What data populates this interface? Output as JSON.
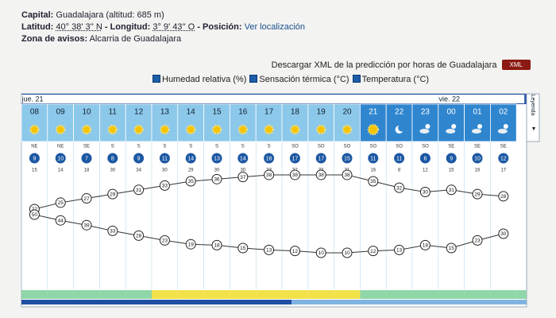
{
  "location": {
    "capital_label": "Capital:",
    "capital": "Guadalajara (altitud: 685 m)",
    "latitude_label": "Latitud:",
    "latitude": "40° 38' 3'' N",
    "longitude_label": "- Longitud:",
    "longitude": "3° 9' 43'' O",
    "position_label": "- Posición:",
    "position_link": "Ver localización",
    "zone_label": "Zona de avisos:",
    "zone": "Alcarria de Guadalajara"
  },
  "download": {
    "text": "Descargar XML de la predicción por horas de Guadalajara",
    "button": "XML"
  },
  "toggles": [
    "Humedad relativa (%)",
    "Sensación térmica (°C)",
    "Temperatura (°C)"
  ],
  "forecast": {
    "days": [
      "jue. 21",
      "vie. 22"
    ],
    "legend": "Leyenda",
    "hours": [
      "08",
      "09",
      "10",
      "11",
      "12",
      "13",
      "14",
      "15",
      "16",
      "17",
      "18",
      "19",
      "20",
      "21",
      "22",
      "23",
      "00",
      "01",
      "02"
    ],
    "wind_direction": [
      "NE",
      "NE",
      "SE",
      "S",
      "S",
      "S",
      "S",
      "S",
      "S",
      "S",
      "SO",
      "SO",
      "SO",
      "SO",
      "SO",
      "SO",
      "SE",
      "SE",
      "SE"
    ],
    "wind_speed": [
      9,
      10,
      7,
      8,
      9,
      11,
      14,
      13,
      14,
      16,
      17,
      17,
      15,
      11,
      11,
      6,
      9,
      10,
      12
    ],
    "wind_gust": [
      15,
      14,
      18,
      30,
      34,
      30,
      29,
      30,
      30,
      33,
      32,
      33,
      31,
      16,
      8,
      12,
      15,
      16,
      17
    ],
    "temperature": [
      22,
      25,
      27,
      29,
      31,
      33,
      35,
      36,
      37,
      38,
      38,
      38,
      38,
      35,
      32,
      30,
      31,
      29,
      28
    ],
    "humidity": [
      50,
      44,
      39,
      33,
      28,
      23,
      19,
      18,
      15,
      13,
      12,
      10,
      10,
      12,
      13,
      18,
      15,
      23,
      30
    ]
  }
}
